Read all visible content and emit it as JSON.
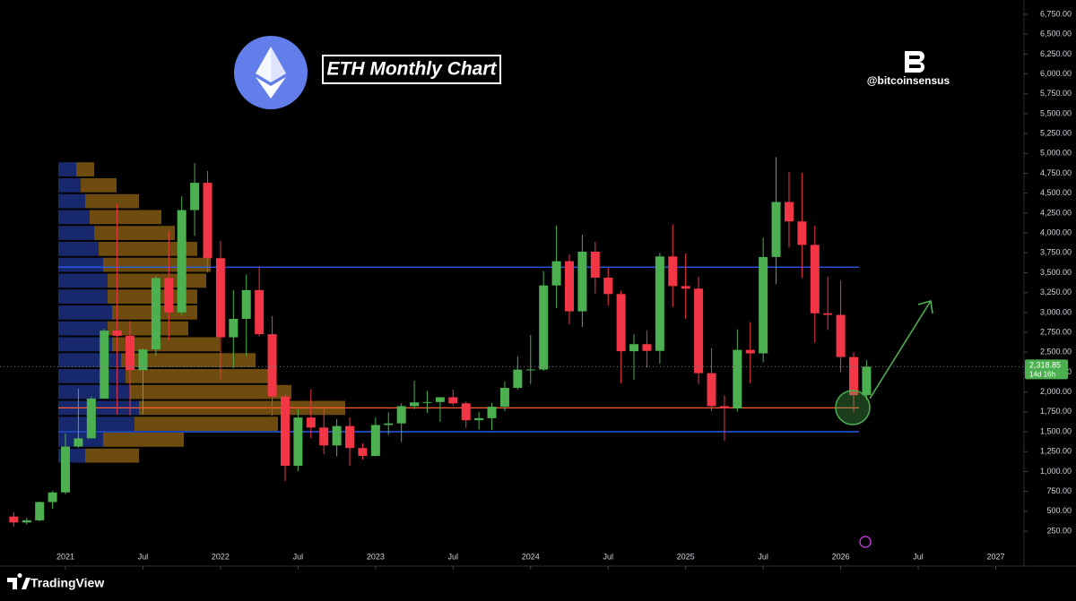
{
  "chart_data": {
    "type": "candlestick",
    "title": "ETH Monthly Chart",
    "watermark": "@bitcoinsensus",
    "brand": "TradingView",
    "x": [
      "2020-09",
      "2020-10",
      "2020-11",
      "2020-12",
      "2021-01",
      "2021-02",
      "2021-03",
      "2021-04",
      "2021-05",
      "2021-06",
      "2021-07",
      "2021-08",
      "2021-09",
      "2021-10",
      "2021-11",
      "2021-12",
      "2022-01",
      "2022-02",
      "2022-03",
      "2022-04",
      "2022-05",
      "2022-06",
      "2022-07",
      "2022-08",
      "2022-09",
      "2022-10",
      "2022-11",
      "2022-12",
      "2023-01",
      "2023-02",
      "2023-03",
      "2023-04",
      "2023-05",
      "2023-06",
      "2023-07",
      "2023-08",
      "2023-09",
      "2023-10",
      "2023-11",
      "2023-12",
      "2024-01",
      "2024-02",
      "2024-03",
      "2024-04",
      "2024-05",
      "2024-06",
      "2024-07",
      "2024-08",
      "2024-09",
      "2024-10",
      "2024-11",
      "2024-12",
      "2025-01",
      "2025-02",
      "2025-03",
      "2025-04",
      "2025-05",
      "2025-06",
      "2025-07",
      "2025-08",
      "2025-09",
      "2025-10",
      "2025-11",
      "2025-12",
      "2026-01",
      "2026-02",
      "2026-03"
    ],
    "open": [
      434,
      359,
      386,
      616,
      737,
      1314,
      1417,
      1918,
      2772,
      2707,
      2275,
      2536,
      3433,
      3001,
      4288,
      4631,
      3683,
      2688,
      2920,
      3282,
      2727,
      1942,
      1072,
      1679,
      1553,
      1328,
      1572,
      1295,
      1196,
      1585,
      1605,
      1822,
      1869,
      1874,
      1934,
      1857,
      1645,
      1671,
      1815,
      2052,
      2282,
      2283,
      3340,
      3645,
      3015,
      3765,
      3438,
      3232,
      2513,
      2602,
      2517,
      3705,
      3332,
      3300,
      2237,
      1822,
      1793,
      2530,
      2486,
      3698,
      4390,
      4145,
      3850,
      2990,
      2970,
      2440,
      1960
    ],
    "high": [
      488,
      420,
      623,
      755,
      1476,
      2041,
      1943,
      2797,
      4372,
      2891,
      2551,
      3466,
      4027,
      4460,
      4878,
      4779,
      3900,
      3282,
      3479,
      3580,
      2955,
      1969,
      1784,
      2030,
      1789,
      1662,
      1680,
      1352,
      1679,
      1743,
      1857,
      2141,
      2014,
      1930,
      2029,
      1877,
      1751,
      1865,
      2133,
      2445,
      2717,
      3522,
      4093,
      3730,
      3978,
      3888,
      3562,
      3273,
      2727,
      2770,
      3750,
      4107,
      3744,
      3450,
      2550,
      1956,
      2788,
      2880,
      3941,
      4956,
      4770,
      4755,
      4090,
      3450,
      3400,
      2500,
      2400
    ],
    "low": [
      308,
      335,
      372,
      532,
      714,
      1300,
      1441,
      1911,
      1719,
      1707,
      1719,
      2450,
      2651,
      2970,
      3964,
      3503,
      2159,
      2300,
      2450,
      2700,
      1700,
      880,
      1005,
      1422,
      1220,
      1191,
      1073,
      1150,
      1190,
      1460,
      1370,
      1785,
      1737,
      1626,
      1825,
      1550,
      1531,
      1521,
      1760,
      2030,
      2100,
      2265,
      3056,
      2853,
      2817,
      3240,
      3087,
      2111,
      2151,
      2310,
      2357,
      3070,
      2920,
      2100,
      1760,
      1385,
      1754,
      2111,
      2373,
      3355,
      3815,
      3435,
      2620,
      2780,
      2250,
      1750,
      1900
    ],
    "close": [
      359,
      386,
      616,
      737,
      1314,
      1417,
      1918,
      2772,
      2707,
      2275,
      2536,
      3433,
      3001,
      4288,
      4631,
      3683,
      2688,
      2920,
      3282,
      2727,
      1942,
      1072,
      1679,
      1553,
      1328,
      1572,
      1295,
      1196,
      1585,
      1605,
      1822,
      1869,
      1874,
      1934,
      1857,
      1645,
      1671,
      1815,
      2052,
      2282,
      2283,
      3340,
      3645,
      3015,
      3765,
      3438,
      3232,
      2513,
      2602,
      2517,
      3705,
      3332,
      3300,
      2237,
      1822,
      1793,
      2530,
      2486,
      3698,
      4390,
      4145,
      3850,
      2990,
      2970,
      2440,
      1960,
      2318.85
    ],
    "up_color": "#4caf50",
    "down_color": "#f23645",
    "last_price_label": "2,318.85",
    "countdown": "14d 16h",
    "levels": [
      {
        "value": 3570,
        "color": "#2962ff"
      },
      {
        "value": 1800,
        "color": "#ff5a36"
      },
      {
        "value": 1500,
        "color": "#2962ff"
      }
    ],
    "volume_profile": {
      "prices": [
        1200,
        1400,
        1600,
        1800,
        2000,
        2200,
        2400,
        2600,
        2800,
        3000,
        3200,
        3400,
        3600,
        3800,
        4000,
        4200,
        4400,
        4600,
        4800
      ],
      "series": [
        {
          "color": "#2a4bc4",
          "values": [
            30,
            50,
            85,
            90,
            80,
            75,
            70,
            60,
            55,
            60,
            55,
            55,
            50,
            45,
            40,
            35,
            30,
            25,
            20
          ]
        },
        {
          "color": "#c8891c",
          "values": [
            60,
            90,
            160,
            230,
            180,
            160,
            150,
            120,
            90,
            95,
            100,
            110,
            120,
            110,
            90,
            80,
            60,
            40,
            20
          ]
        }
      ]
    },
    "ylim": [
      0,
      7000
    ],
    "yticks": [
      {
        "value": 250,
        "label": "250.00"
      },
      {
        "value": 500,
        "label": "500.00"
      },
      {
        "value": 750,
        "label": "750.00"
      },
      {
        "value": 1000,
        "label": "1,000.00"
      },
      {
        "value": 1250,
        "label": "1,250.00"
      },
      {
        "value": 1500,
        "label": "1,500.00"
      },
      {
        "value": 1750,
        "label": "1,750.00"
      },
      {
        "value": 2000,
        "label": "2,000.00"
      },
      {
        "value": 2250,
        "label": "2,250.00"
      },
      {
        "value": 2500,
        "label": "2,500.00"
      },
      {
        "value": 2750,
        "label": "2,750.00"
      },
      {
        "value": 3000,
        "label": "3,000.00"
      },
      {
        "value": 3250,
        "label": "3,250.00"
      },
      {
        "value": 3500,
        "label": "3,500.00"
      },
      {
        "value": 3750,
        "label": "3,750.00"
      },
      {
        "value": 4000,
        "label": "4,000.00"
      },
      {
        "value": 4250,
        "label": "4,250.00"
      },
      {
        "value": 4500,
        "label": "4,500.00"
      },
      {
        "value": 4750,
        "label": "4,750.00"
      },
      {
        "value": 5000,
        "label": "5,000.00"
      },
      {
        "value": 5250,
        "label": "5,250.00"
      },
      {
        "value": 5500,
        "label": "5,500.00"
      },
      {
        "value": 5750,
        "label": "5,750.00"
      },
      {
        "value": 6000,
        "label": "6,000.00"
      },
      {
        "value": 6250,
        "label": "6,250.00"
      },
      {
        "value": 6500,
        "label": "6,500.00"
      },
      {
        "value": 6750,
        "label": "6,750.00"
      }
    ],
    "xticks": [
      {
        "value": "2021-01",
        "label": "2021"
      },
      {
        "value": "2021-07",
        "label": "Jul"
      },
      {
        "value": "2022-01",
        "label": "2022"
      },
      {
        "value": "2022-07",
        "label": "Jul"
      },
      {
        "value": "2023-01",
        "label": "2023"
      },
      {
        "value": "2023-07",
        "label": "Jul"
      },
      {
        "value": "2024-01",
        "label": "2024"
      },
      {
        "value": "2024-07",
        "label": "Jul"
      },
      {
        "value": "2025-01",
        "label": "2025"
      },
      {
        "value": "2025-07",
        "label": "Jul"
      },
      {
        "value": "2026-01",
        "label": "2026"
      },
      {
        "value": "2026-07",
        "label": "Jul"
      },
      {
        "value": "2027-01",
        "label": "2027"
      }
    ]
  }
}
